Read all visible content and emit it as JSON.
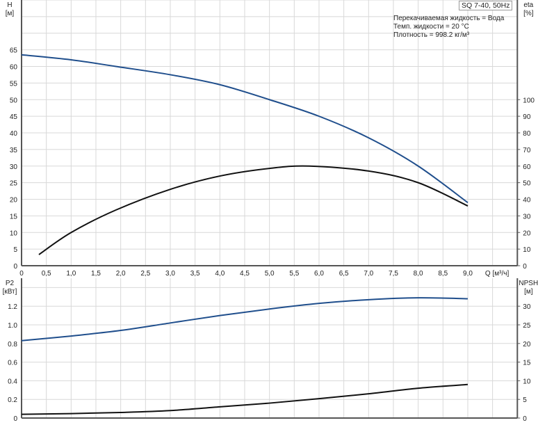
{
  "chart_data": [
    {
      "type": "line",
      "title": "SQ 7-40, 50Hz",
      "annotations": [
        "Перекачиваемая жидкость = Вода",
        "Темп. жидкости = 20 °C",
        "Плотность = 998.2 кг/м³"
      ],
      "xlabel": "Q [м³/ч]",
      "ylabel_left": [
        "H",
        "[м]"
      ],
      "ylabel_right": [
        "eta",
        "[%]"
      ],
      "xlim": [
        0,
        10
      ],
      "ylim_left": [
        0,
        80
      ],
      "ylim_right": [
        0,
        160
      ],
      "x_ticks": [
        "0",
        "0,5",
        "1,0",
        "1,5",
        "2,0",
        "2,5",
        "3,0",
        "3,5",
        "4,0",
        "4,5",
        "5,0",
        "5,5",
        "6,0",
        "6,5",
        "7,0",
        "7,5",
        "8,0",
        "8,5",
        "9,0"
      ],
      "y_ticks_left": [
        0,
        5,
        10,
        15,
        20,
        25,
        30,
        35,
        40,
        45,
        50,
        55,
        60,
        65
      ],
      "y_ticks_right": [
        0,
        10,
        20,
        30,
        40,
        50,
        60,
        70,
        80,
        90,
        100
      ],
      "grid": true,
      "series": [
        {
          "name": "H",
          "axis": "left",
          "color": "#1f4e8c",
          "x": [
            0,
            1,
            1.9,
            3,
            4,
            5,
            6,
            7,
            8,
            9
          ],
          "y": [
            63.5,
            62,
            60,
            57.5,
            54.5,
            50,
            45,
            38.5,
            30,
            19
          ]
        },
        {
          "name": "eta",
          "axis": "right",
          "color": "#111111",
          "x": [
            0.35,
            1,
            1.9,
            3,
            4,
            5,
            5.8,
            7,
            8,
            9
          ],
          "y": [
            6.7,
            20,
            33.5,
            46,
            54,
            58.6,
            60,
            57,
            50,
            36
          ]
        }
      ]
    },
    {
      "type": "line",
      "ylabel_left": [
        "P2",
        "[кВт]"
      ],
      "ylabel_right": [
        "NPSH",
        "[м]"
      ],
      "xlim": [
        0,
        10
      ],
      "ylim_left": [
        0,
        1.5
      ],
      "ylim_right": [
        0,
        37.5
      ],
      "y_ticks_left": [
        "0",
        "0.2",
        "0.4",
        "0.6",
        "0.8",
        "1.0",
        "1.2"
      ],
      "y_ticks_right": [
        0,
        5,
        10,
        15,
        20,
        25,
        30
      ],
      "grid": true,
      "series": [
        {
          "name": "P2",
          "axis": "left",
          "color": "#1f4e8c",
          "x": [
            0,
            1,
            2,
            3,
            4,
            5,
            6,
            7,
            8,
            9
          ],
          "y": [
            0.83,
            0.88,
            0.94,
            1.02,
            1.1,
            1.17,
            1.23,
            1.27,
            1.29,
            1.28
          ]
        },
        {
          "name": "NPSH",
          "axis": "right",
          "color": "#111111",
          "x": [
            0,
            1,
            2,
            3,
            4,
            5,
            6,
            7,
            8,
            9
          ],
          "y": [
            1,
            1.2,
            1.5,
            2,
            3,
            4,
            5.2,
            6.5,
            8,
            9
          ]
        }
      ]
    }
  ]
}
